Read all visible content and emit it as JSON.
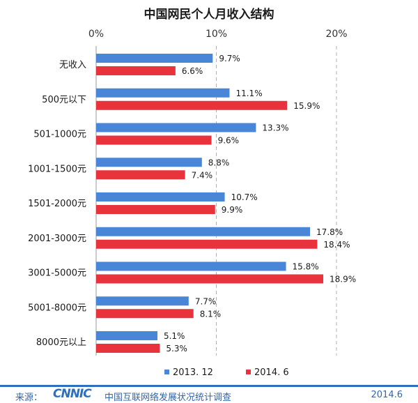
{
  "chart_data": {
    "type": "bar",
    "orientation": "horizontal",
    "title": "中国网民个人月收入结构",
    "categories": [
      "无收入",
      "500元以下",
      "501-1000元",
      "1001-1500元",
      "1501-2000元",
      "2001-3000元",
      "3001-5000元",
      "5001-8000元",
      "8000元以上"
    ],
    "series": [
      {
        "name": "2013. 12",
        "color": "#4a86d8",
        "values": [
          9.7,
          11.1,
          13.3,
          8.8,
          10.7,
          17.8,
          15.8,
          7.7,
          5.1
        ]
      },
      {
        "name": "2014. 6",
        "color": "#e8323c",
        "values": [
          6.6,
          15.9,
          9.6,
          7.4,
          9.9,
          18.4,
          18.9,
          8.1,
          5.3
        ]
      }
    ],
    "xlim": [
      0,
      20
    ],
    "x_ticks": [
      "0%",
      "10%",
      "20%"
    ],
    "value_suffix": "%",
    "grid": true,
    "axis_position": "top",
    "legend_position": "bottom"
  },
  "footer": {
    "source_label": "来源：",
    "logo_text": "CNNIC",
    "source_org": "中国互联网络发展状况统计调查",
    "date": "2014.6"
  }
}
